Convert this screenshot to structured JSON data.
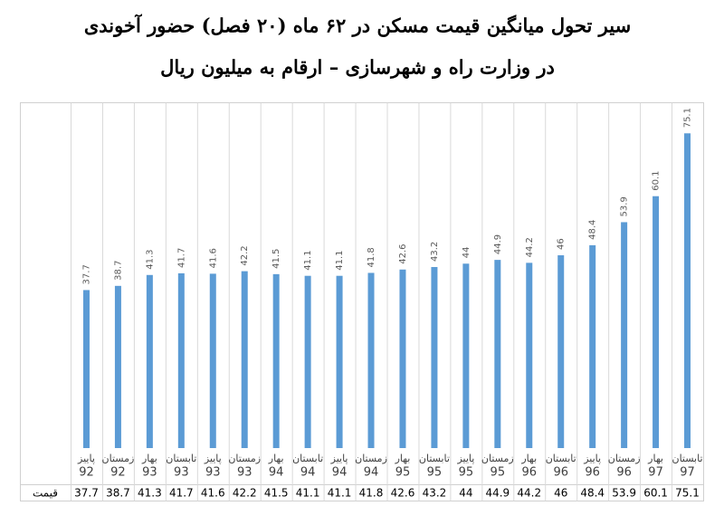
{
  "chart_data": {
    "type": "bar",
    "title": "سیر تحول میانگین قیمت مسکن در ۶۲ ماه (۲۰ فصل) حضور آخوندی",
    "subtitle": "در وزارت راه و شهرسازی – ارقام به میلیون ریال",
    "categories": [
      [
        "پاییز",
        "92"
      ],
      [
        "زمستان",
        "92"
      ],
      [
        "بهار",
        "93"
      ],
      [
        "تابستان",
        "93"
      ],
      [
        "پاییز",
        "93"
      ],
      [
        "زمستان",
        "93"
      ],
      [
        "بهار",
        "94"
      ],
      [
        "تابستان",
        "94"
      ],
      [
        "پاییز",
        "94"
      ],
      [
        "زمستان",
        "94"
      ],
      [
        "بهار",
        "95"
      ],
      [
        "تابستان",
        "95"
      ],
      [
        "پاییز",
        "95"
      ],
      [
        "زمستان",
        "95"
      ],
      [
        "بهار",
        "96"
      ],
      [
        "تابستان",
        "96"
      ],
      [
        "پاییز",
        "96"
      ],
      [
        "زمستان",
        "96"
      ],
      [
        "بهار",
        "97"
      ],
      [
        "تابستان",
        "97"
      ]
    ],
    "values": [
      37.7,
      38.7,
      41.3,
      41.7,
      41.6,
      42.2,
      41.5,
      41.1,
      41.1,
      41.8,
      42.6,
      43.2,
      44,
      44.9,
      44.2,
      46,
      48.4,
      53.9,
      60.1,
      75.1
    ],
    "row_label": "قیمت",
    "color": "#5b9bd5"
  }
}
